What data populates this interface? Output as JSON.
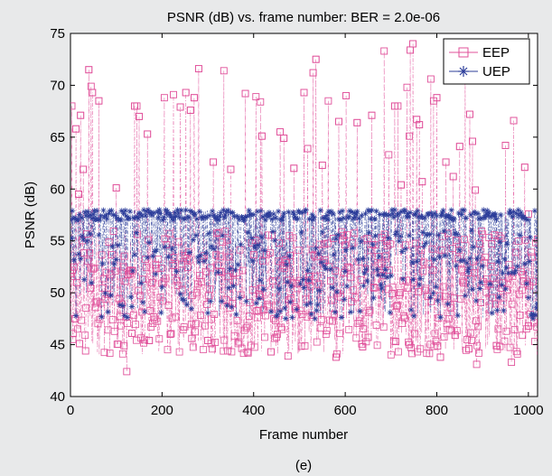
{
  "chart_data": {
    "type": "line",
    "title": "PSNR (dB) vs. frame number: BER = 2.0e-06",
    "xlabel": "Frame number",
    "ylabel": "PSNR (dB)",
    "caption": "(e)",
    "xlim": [
      0,
      1020
    ],
    "ylim": [
      40,
      75
    ],
    "xticks": [
      0,
      200,
      400,
      600,
      800,
      1000
    ],
    "yticks": [
      40,
      45,
      50,
      55,
      60,
      65,
      70,
      75
    ],
    "grid": false,
    "legend_position": "top-right",
    "series": [
      {
        "name": "EEP",
        "color": "#e0509a",
        "marker": "square",
        "line_style": "dash-dot",
        "typical_range": [
          44,
          56
        ],
        "peaks": [
          [
            3,
            68
          ],
          [
            12,
            65.8
          ],
          [
            18,
            59.5
          ],
          [
            22,
            67.1
          ],
          [
            28,
            61.9
          ],
          [
            40,
            71.5
          ],
          [
            45,
            69.9
          ],
          [
            48,
            69.3
          ],
          [
            62,
            68.5
          ],
          [
            100,
            60.1
          ],
          [
            140,
            68
          ],
          [
            145,
            68
          ],
          [
            150,
            67
          ],
          [
            168,
            65.3
          ],
          [
            205,
            68.8
          ],
          [
            225,
            69.1
          ],
          [
            240,
            67.9
          ],
          [
            252,
            69.3
          ],
          [
            262,
            67.6
          ],
          [
            270,
            68.8
          ],
          [
            280,
            71.6
          ],
          [
            312,
            62.6
          ],
          [
            335,
            71.4
          ],
          [
            350,
            61.9
          ],
          [
            382,
            69.2
          ],
          [
            405,
            68.9
          ],
          [
            415,
            68.4
          ],
          [
            418,
            65.1
          ],
          [
            458,
            65.5
          ],
          [
            466,
            64.9
          ],
          [
            488,
            62
          ],
          [
            510,
            69.3
          ],
          [
            518,
            63.9
          ],
          [
            530,
            71.2
          ],
          [
            536,
            72.5
          ],
          [
            550,
            62.3
          ],
          [
            563,
            68.5
          ],
          [
            586,
            66.5
          ],
          [
            602,
            69
          ],
          [
            626,
            66.4
          ],
          [
            658,
            67.1
          ],
          [
            685,
            73.3
          ],
          [
            695,
            63.3
          ],
          [
            708,
            68
          ],
          [
            715,
            68
          ],
          [
            722,
            60.4
          ],
          [
            735,
            69.8
          ],
          [
            740,
            65.1
          ],
          [
            742,
            73.4
          ],
          [
            748,
            74
          ],
          [
            756,
            66.7
          ],
          [
            762,
            66.2
          ],
          [
            768,
            60.7
          ],
          [
            787,
            70.6
          ],
          [
            793,
            68.5
          ],
          [
            800,
            68.8
          ],
          [
            820,
            62.6
          ],
          [
            836,
            61.2
          ],
          [
            850,
            64.1
          ],
          [
            862,
            72.3
          ],
          [
            872,
            67.2
          ],
          [
            878,
            64.6
          ],
          [
            884,
            59.9
          ],
          [
            950,
            64.2
          ],
          [
            968,
            66.6
          ],
          [
            992,
            62.1
          ],
          [
            1000,
            57.6
          ]
        ],
        "troughs": [
          [
            5,
            45.5
          ],
          [
            10,
            47.5
          ],
          [
            20,
            45.1
          ],
          [
            33,
            44.4
          ],
          [
            117,
            44.9
          ],
          [
            123,
            42.4
          ],
          [
            134,
            46.1
          ],
          [
            172,
            45.4
          ],
          [
            218,
            46
          ],
          [
            265,
            45.6
          ],
          [
            300,
            45.4
          ],
          [
            307,
            45.1
          ],
          [
            343,
            44.4
          ],
          [
            387,
            44.3
          ],
          [
            438,
            44.3
          ],
          [
            475,
            43.9
          ],
          [
            580,
            43.8
          ],
          [
            638,
            44.8
          ],
          [
            650,
            45.7
          ],
          [
            710,
            45.3
          ],
          [
            740,
            45
          ],
          [
            808,
            43.8
          ],
          [
            840,
            45.9
          ],
          [
            870,
            44.6
          ],
          [
            887,
            43.1
          ],
          [
            930,
            44.9
          ],
          [
            963,
            43.3
          ],
          [
            987,
            45.9
          ],
          [
            1000,
            46.8
          ]
        ]
      },
      {
        "name": "UEP",
        "color": "#2c3d9a",
        "marker": "asterisk",
        "line_style": "dash-dot",
        "typical_range": [
          57,
          58
        ],
        "upper_level": 57.5,
        "lower_range": [
          47.5,
          56
        ]
      }
    ]
  }
}
